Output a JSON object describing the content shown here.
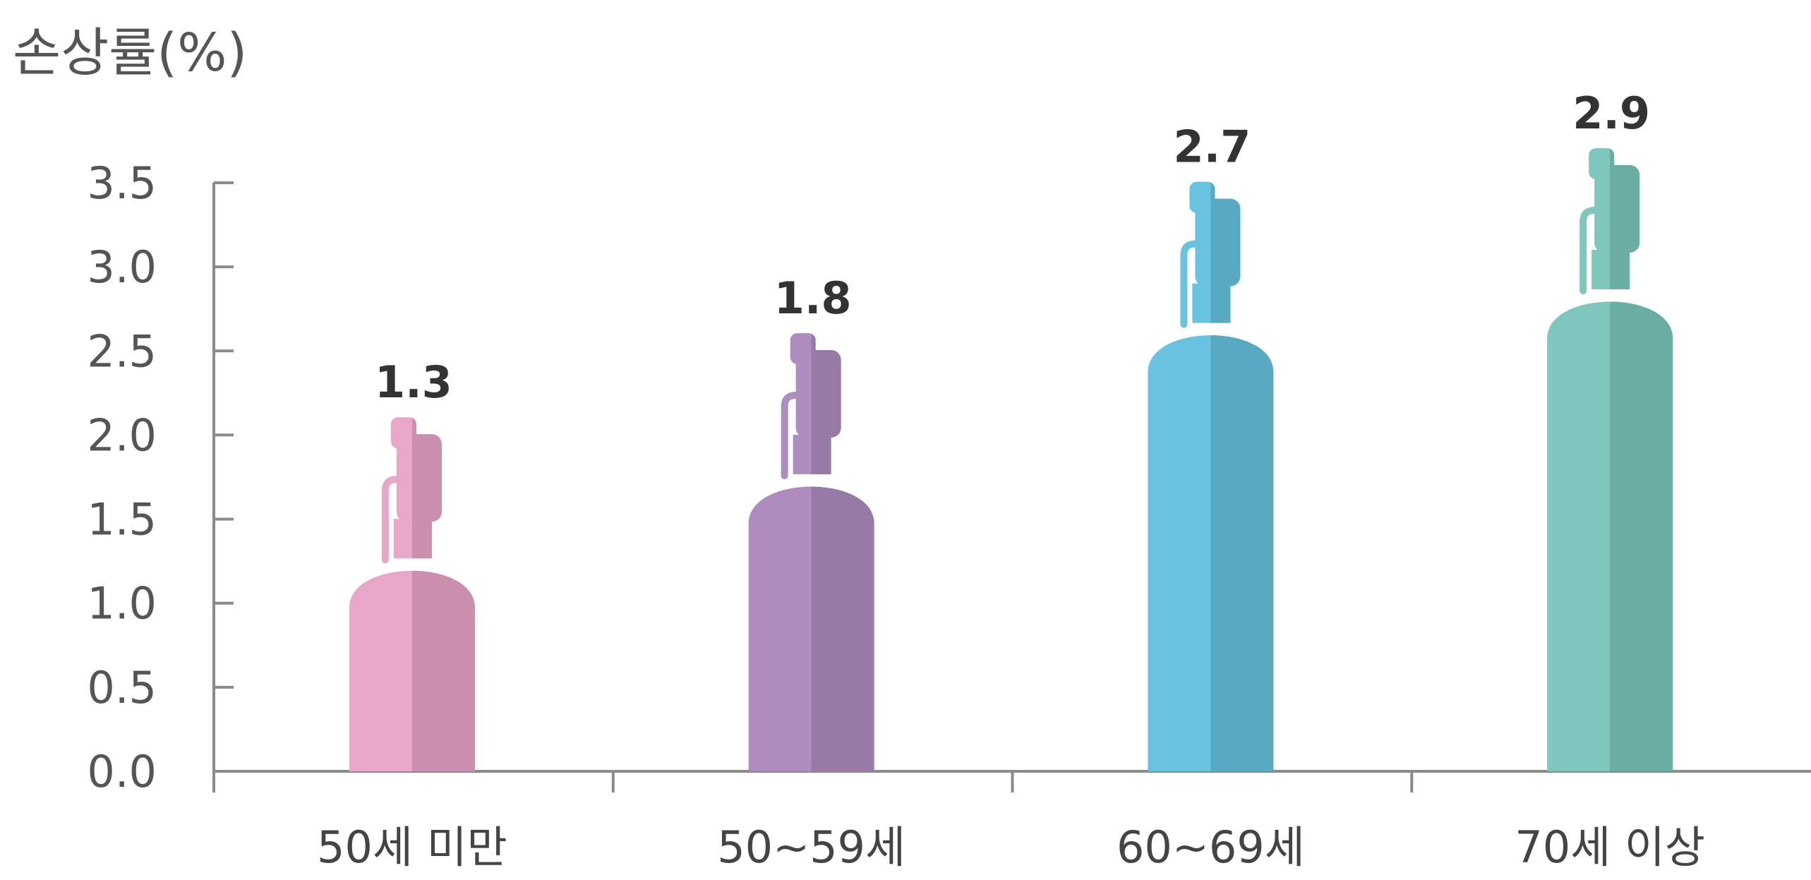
{
  "chart_data": {
    "type": "bar",
    "title": "",
    "ylabel": "손상률(%)",
    "xlabel": "",
    "categories": [
      "50세  미만",
      "50~59세",
      "60~69세",
      "70세  이상"
    ],
    "values": [
      1.3,
      1.8,
      2.7,
      2.9
    ],
    "value_labels": [
      "1.3",
      "1.8",
      "2.7",
      "2.9"
    ],
    "ylim": [
      0,
      3.5
    ],
    "yticks": [
      "0.0",
      "0.5",
      "1.0",
      "1.5",
      "2.0",
      "2.5",
      "3.0",
      "3.5"
    ],
    "grid": false,
    "legend": "none",
    "bar_shape": "gas-cylinder",
    "colors": [
      {
        "light": "#E8A6C9",
        "dark": "#CA8FAE"
      },
      {
        "light": "#AE8DBE",
        "dark": "#977BA6"
      },
      {
        "light": "#68C3E0",
        "dark": "#58AAC3"
      },
      {
        "light": "#7FC7BD",
        "dark": "#6AAEA3"
      }
    ],
    "axis_color": "#8A8A8A"
  }
}
